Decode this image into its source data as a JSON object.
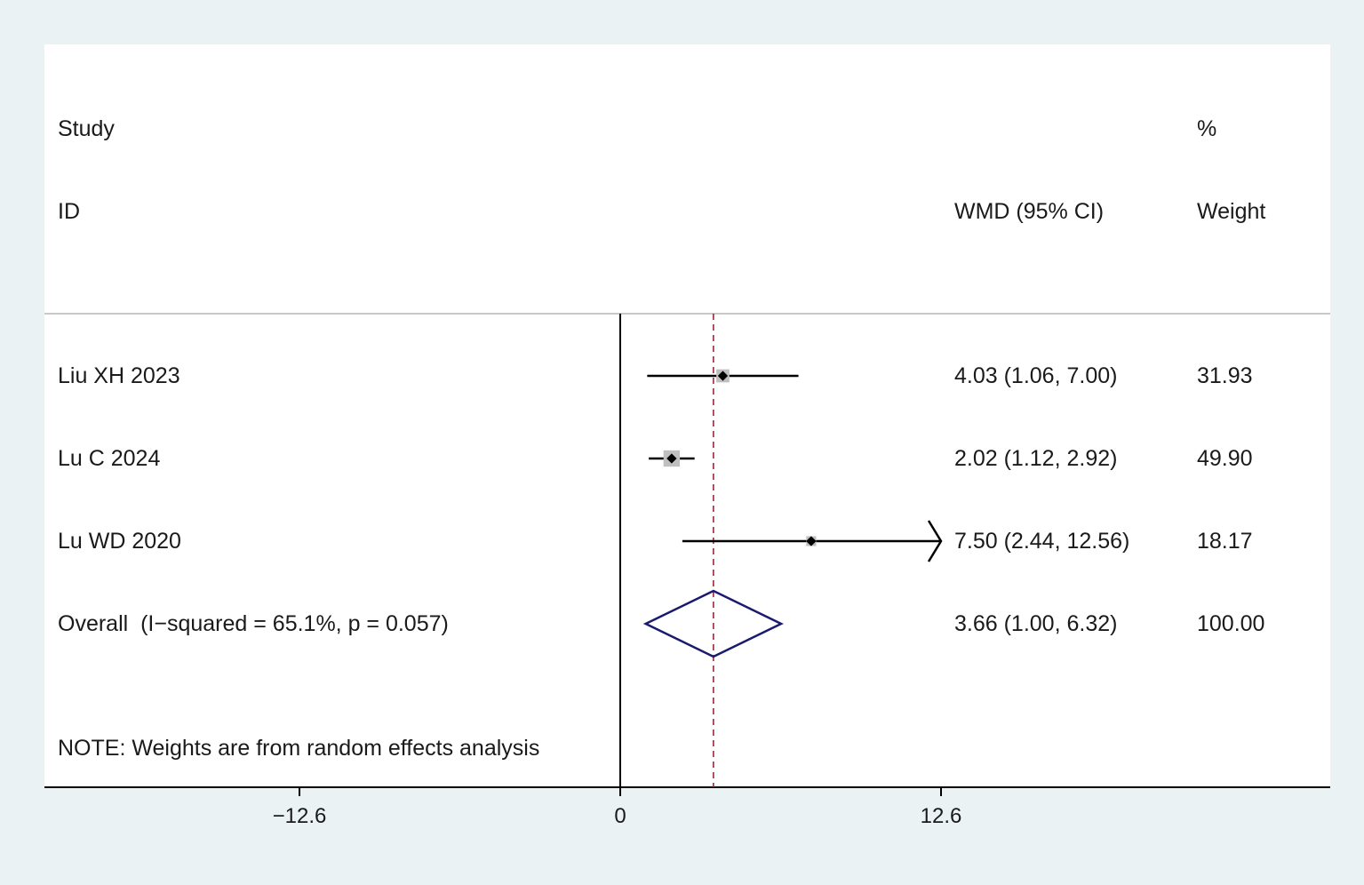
{
  "headers": {
    "study": "Study",
    "id": "ID",
    "effect": "WMD (95% CI)",
    "weight_pct": "%",
    "weight": "Weight"
  },
  "note": "NOTE: Weights are from random effects analysis",
  "colors": {
    "background": "#eaf2f3",
    "panel": "#ffffff",
    "ci_line": "#000000",
    "weight_box": "#bfbfbf",
    "diamond": "#1a1a6e",
    "overall_line": "#9a2a3a"
  },
  "chart_data": {
    "type": "forest",
    "effect_measure": "WMD (95% CI)",
    "xaxis": {
      "ticks": [
        -12.6,
        0,
        12.6
      ],
      "tick_labels": [
        "−12.6",
        "0",
        "12.6"
      ]
    },
    "studies": [
      {
        "id": "Liu XH 2023",
        "estimate": 4.03,
        "lower": 1.06,
        "upper": 7.0,
        "ci_text": "4.03 (1.06, 7.00)",
        "weight": 31.93,
        "weight_text": "31.93"
      },
      {
        "id": "Lu C 2024",
        "estimate": 2.02,
        "lower": 1.12,
        "upper": 2.92,
        "ci_text": "2.02 (1.12, 2.92)",
        "weight": 49.9,
        "weight_text": "49.90"
      },
      {
        "id": "Lu WD 2020",
        "estimate": 7.5,
        "lower": 2.44,
        "upper": 12.56,
        "ci_text": "7.50 (2.44, 12.56)",
        "weight": 18.17,
        "weight_text": "18.17",
        "arrow_right": true
      }
    ],
    "overall": {
      "label": "Overall  (I−squared = 65.1%, p = 0.057)",
      "estimate": 3.66,
      "lower": 1.0,
      "upper": 6.32,
      "ci_text": "3.66 (1.00, 6.32)",
      "weight_text": "100.00",
      "i_squared": 65.1,
      "p_value": 0.057
    },
    "model": "random effects"
  }
}
